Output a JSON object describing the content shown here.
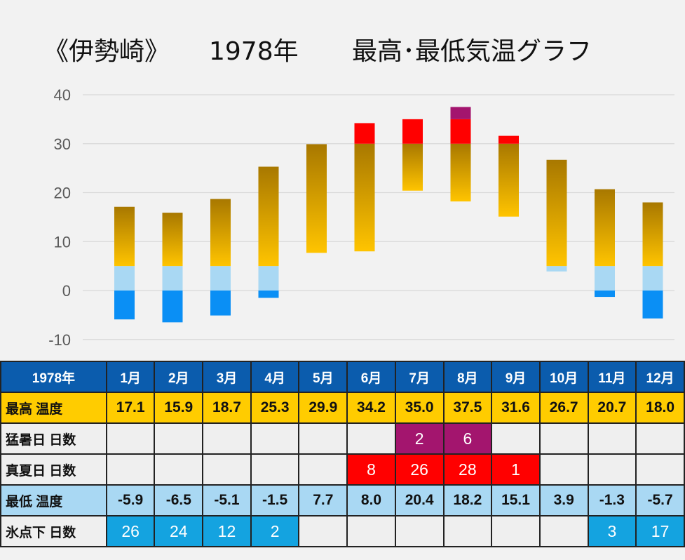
{
  "chart_data": {
    "type": "bar",
    "title_location": "《伊勢崎》",
    "title_year": "1978年",
    "title_text": "最高･最低気温グラフ",
    "categories": [
      "1月",
      "2月",
      "3月",
      "4月",
      "5月",
      "6月",
      "7月",
      "8月",
      "9月",
      "10月",
      "11月",
      "12月"
    ],
    "series": [
      {
        "name": "最高 温度",
        "values": [
          17.1,
          15.9,
          18.7,
          25.3,
          29.9,
          34.2,
          35.0,
          37.5,
          31.6,
          26.7,
          20.7,
          18.0
        ]
      },
      {
        "name": "最低 温度",
        "values": [
          -5.9,
          -6.5,
          -5.1,
          -1.5,
          7.7,
          8.0,
          20.4,
          18.2,
          15.1,
          3.9,
          -1.3,
          -5.7
        ]
      }
    ],
    "ylim": [
      -10,
      40
    ],
    "yticks": [
      40,
      30,
      20,
      10,
      0,
      -10
    ],
    "grid": true,
    "colors": {
      "warm_top": "#a87800",
      "warm_bottom": "#ffc400",
      "cool": "#a9d8f3",
      "freezing": "#0a8ff5",
      "manatsu": "#ff0000",
      "mosho": "#a3156e",
      "gridline": "#d9d9d9"
    }
  },
  "table": {
    "year_label": "1978年",
    "months": [
      "1月",
      "2月",
      "3月",
      "4月",
      "5月",
      "6月",
      "7月",
      "8月",
      "9月",
      "10月",
      "11月",
      "12月"
    ],
    "rows": [
      {
        "label": "最高 温度",
        "kind": "max",
        "cells": [
          "17.1",
          "15.9",
          "18.7",
          "25.3",
          "29.9",
          "34.2",
          "35.0",
          "37.5",
          "31.6",
          "26.7",
          "20.7",
          "18.0"
        ]
      },
      {
        "label": "猛暑日 日数",
        "kind": "mosho",
        "cells": [
          "",
          "",
          "",
          "",
          "",
          "",
          "2",
          "6",
          "",
          "",
          "",
          ""
        ]
      },
      {
        "label": "真夏日 日数",
        "kind": "manatsu",
        "cells": [
          "",
          "",
          "",
          "",
          "",
          "8",
          "26",
          "28",
          "1",
          "",
          "",
          ""
        ]
      },
      {
        "label": "最低 温度",
        "kind": "min",
        "cells": [
          "-5.9",
          "-6.5",
          "-5.1",
          "-1.5",
          "7.7",
          "8.0",
          "20.4",
          "18.2",
          "15.1",
          "3.9",
          "-1.3",
          "-5.7"
        ]
      },
      {
        "label": "氷点下 日数",
        "kind": "frost",
        "cells": [
          "26",
          "24",
          "12",
          "2",
          "",
          "",
          "",
          "",
          "",
          "",
          "3",
          "17"
        ]
      }
    ]
  }
}
